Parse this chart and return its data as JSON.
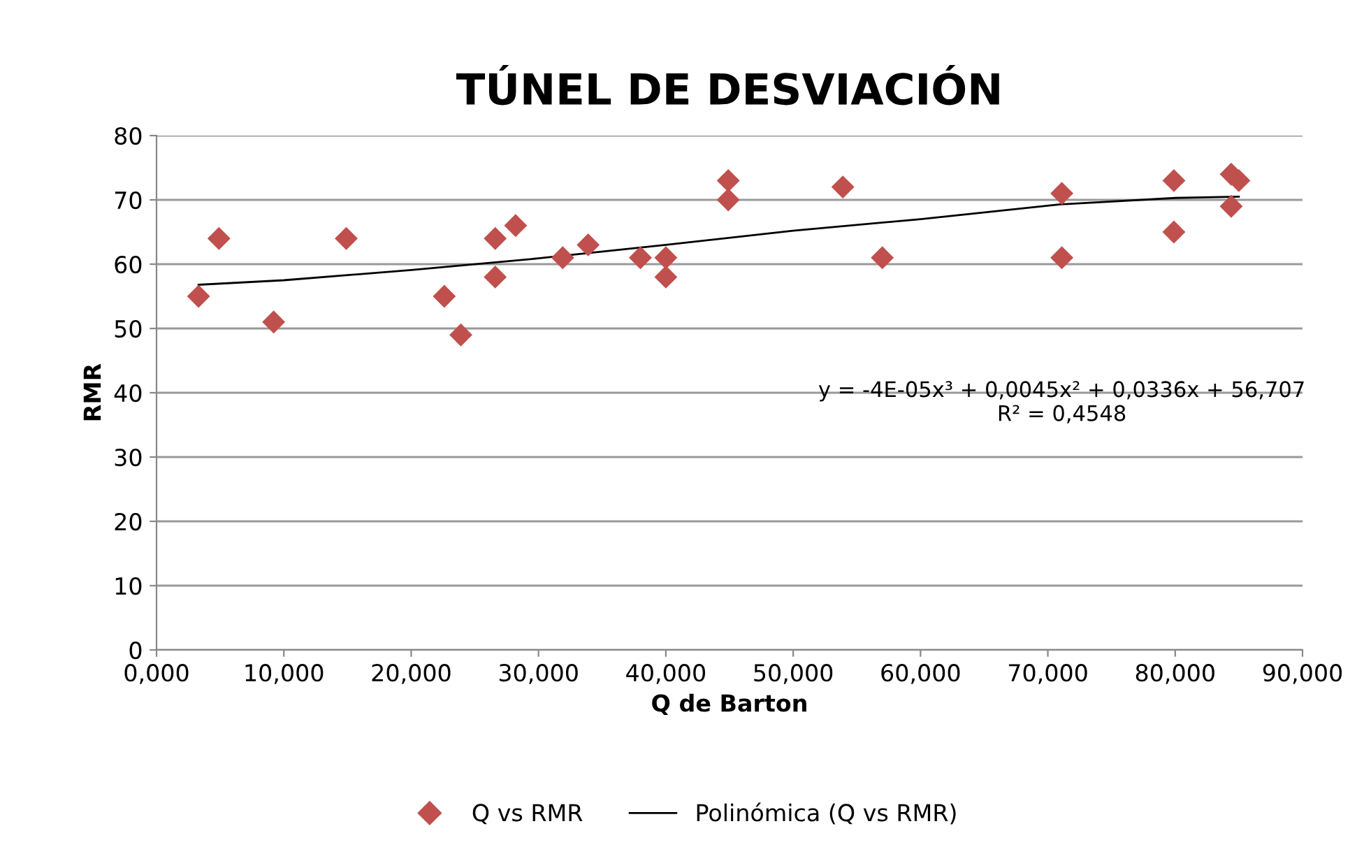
{
  "chart_data": {
    "type": "scatter",
    "title": "TÚNEL DE DESVIACIÓN",
    "xlabel": "Q de Barton",
    "ylabel": "RMR",
    "series": [
      {
        "name": "Q vs RMR",
        "color": "#c0504d",
        "marker": "diamond",
        "x": [
          3.3,
          4.9,
          9.2,
          14.9,
          22.6,
          23.9,
          26.6,
          26.6,
          28.2,
          31.9,
          33.9,
          38.0,
          40.0,
          40.0,
          44.9,
          44.9,
          53.9,
          57.0,
          71.1,
          71.1,
          79.9,
          79.9,
          84.4,
          85.0,
          84.4
        ],
        "values": [
          55,
          64,
          51,
          64,
          55,
          49,
          64,
          58,
          66,
          61,
          63,
          61,
          61,
          58,
          73,
          70,
          72,
          61,
          71,
          61,
          73,
          65,
          74,
          73,
          69
        ]
      },
      {
        "name": "Polinómica (Q vs RMR)",
        "type": "line",
        "color": "#000000",
        "marker": "none",
        "x": [
          3.3,
          10,
          20,
          30,
          40,
          50,
          60,
          71,
          80,
          85
        ],
        "values": [
          56.8,
          57.5,
          59.1,
          60.9,
          63.0,
          65.2,
          67.0,
          69.3,
          70.3,
          70.5
        ]
      }
    ],
    "annotations": [
      "y = -4E-05x³ + 0,0045x² + 0,0336x + 56,707\nR² = 0,4548"
    ],
    "xlim": [
      0,
      90
    ],
    "xticks": [
      {
        "value": 0,
        "label": "0,000"
      },
      {
        "value": 10,
        "label": "10,000"
      },
      {
        "value": 20,
        "label": "20,000"
      },
      {
        "value": 30,
        "label": "30,000"
      },
      {
        "value": 40,
        "label": "40,000"
      },
      {
        "value": 50,
        "label": "50,000"
      },
      {
        "value": 60,
        "label": "60,000"
      },
      {
        "value": 70,
        "label": "70,000"
      },
      {
        "value": 80,
        "label": "80,000"
      },
      {
        "value": 90,
        "label": "90,000"
      }
    ],
    "ylim": [
      0,
      80
    ],
    "yticks": [
      0,
      10,
      20,
      30,
      40,
      50,
      60,
      70,
      80
    ],
    "grid": "y",
    "legend": "bottom"
  }
}
